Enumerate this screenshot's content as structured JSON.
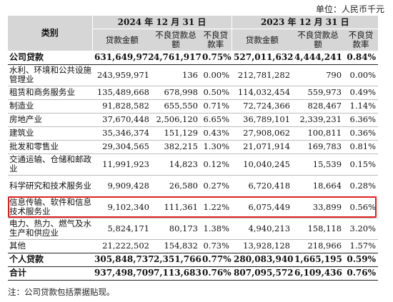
{
  "unit_label": "单位：人民币千元",
  "header": {
    "category": "类别",
    "year_2024": "2024 年 12 月 31 日",
    "year_2023": "2023 年 12 月 31 日",
    "cols": [
      "贷款金额",
      "不良贷款总额",
      "不良贷款率",
      "贷款金额",
      "不良贷款总额",
      "不良贷款率"
    ]
  },
  "rows": [
    {
      "name": "公司贷款",
      "v": [
        "631,649,972",
        "4,761,917",
        "0.75%",
        "527,011,632",
        "4,444,241",
        "0.84%"
      ]
    },
    {
      "name": "水利、环境和公共设施管理业",
      "v": [
        "243,959,971",
        "136",
        "0.00%",
        "212,781,282",
        "790",
        "0.00%"
      ]
    },
    {
      "name": "租赁和商务服务业",
      "v": [
        "135,489,668",
        "678,998",
        "0.50%",
        "114,032,454",
        "559,973",
        "0.49%"
      ]
    },
    {
      "name": "制造业",
      "v": [
        "91,828,582",
        "655,550",
        "0.71%",
        "72,724,366",
        "828,467",
        "1.14%"
      ]
    },
    {
      "name": "房地产业",
      "v": [
        "37,670,448",
        "2,506,120",
        "6.65%",
        "36,789,101",
        "2,339,231",
        "6.36%"
      ]
    },
    {
      "name": "建筑业",
      "v": [
        "35,346,374",
        "151,129",
        "0.43%",
        "27,908,062",
        "100,811",
        "0.36%"
      ]
    },
    {
      "name": "批发和零售业",
      "v": [
        "29,304,565",
        "382,215",
        "1.30%",
        "21,071,914",
        "169,783",
        "0.81%"
      ]
    },
    {
      "name": "交通运输、仓储和邮政业",
      "v": [
        "11,991,923",
        "14,823",
        "0.12%",
        "10,040,245",
        "15,539",
        "0.15%"
      ]
    },
    {
      "name": "科学研究和技术服务业",
      "v": [
        "9,909,428",
        "26,580",
        "0.27%",
        "6,720,418",
        "18,664",
        "0.28%"
      ]
    },
    {
      "name": "信息传输、软件和信息技术服务业",
      "v": [
        "9,102,340",
        "111,361",
        "1.22%",
        "6,075,449",
        "33,899",
        "0.56%"
      ]
    },
    {
      "name": "电力、热力、燃气及水生产和供应业",
      "v": [
        "5,824,171",
        "80,173",
        "1.38%",
        "4,940,213",
        "158,118",
        "3.20%"
      ]
    },
    {
      "name": "其他",
      "v": [
        "21,222,502",
        "154,832",
        "0.73%",
        "13,928,128",
        "218,966",
        "1.57%"
      ]
    },
    {
      "name": "个人贷款",
      "v": [
        "305,848,737",
        "2,351,766",
        "0.77%",
        "280,083,940",
        "1,665,195",
        "0.59%"
      ]
    },
    {
      "name": "合计",
      "v": [
        "937,498,709",
        "7,113,683",
        "0.76%",
        "807,095,572",
        "6,109,436",
        "0.76%"
      ]
    }
  ],
  "note": "注：公司贷款包括票据贴现。",
  "colors": {
    "header_bg": "#d6d6d6",
    "highlight": "#e02020"
  }
}
